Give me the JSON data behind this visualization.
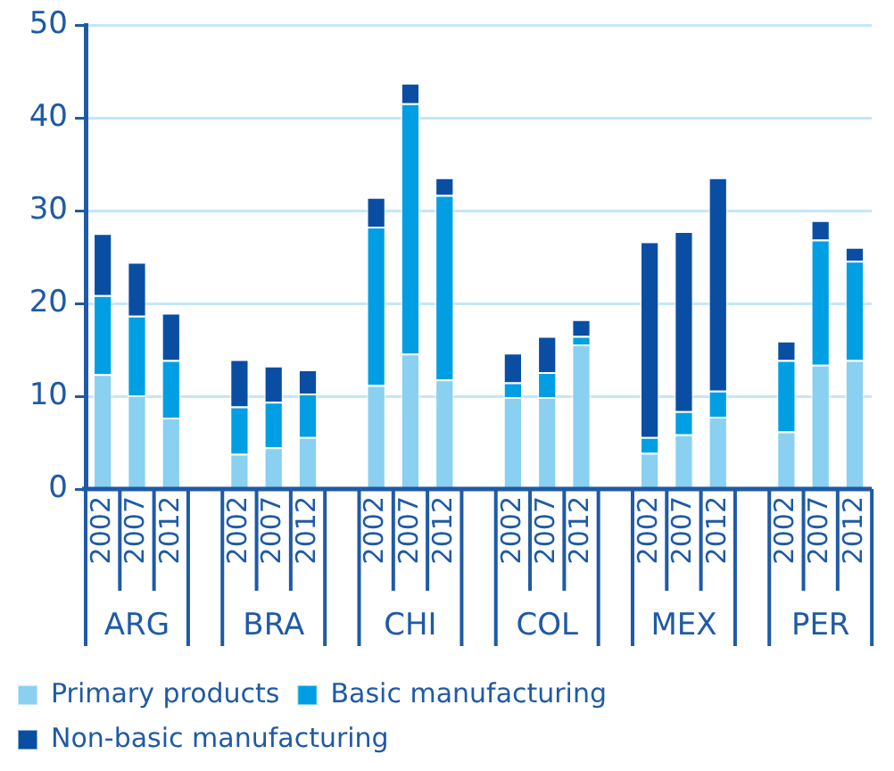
{
  "chart_data": {
    "type": "bar",
    "stacked": true,
    "categories": [
      "2002",
      "2007",
      "2012",
      null,
      "2002",
      "2007",
      "2012",
      null,
      "2002",
      "2007",
      "2012",
      null,
      "2002",
      "2007",
      "2012",
      null,
      "2002",
      "2007",
      "2012",
      null,
      "2002",
      "2007",
      "2012"
    ],
    "series": [
      {
        "name": "Primary products",
        "color": "#8ad0f0",
        "values": [
          12.4,
          10.1,
          7.7,
          null,
          3.8,
          4.5,
          5.6,
          null,
          11.2,
          14.6,
          11.8,
          null,
          9.9,
          9.9,
          15.6,
          null,
          3.9,
          5.9,
          7.8,
          null,
          6.2,
          13.4,
          13.9
        ]
      },
      {
        "name": "Basic manufacturing",
        "color": "#009fe3",
        "values": [
          8.5,
          8.6,
          6.2,
          null,
          5.1,
          4.9,
          4.7,
          null,
          17.1,
          27.0,
          19.9,
          null,
          1.6,
          2.7,
          0.9,
          null,
          1.7,
          2.5,
          2.8,
          null,
          7.7,
          13.5,
          10.7
        ]
      },
      {
        "name": "Non-basic manufacturing",
        "color": "#0a4ea3",
        "values": [
          6.7,
          5.8,
          5.1,
          null,
          5.1,
          3.9,
          2.6,
          null,
          3.2,
          2.2,
          1.9,
          null,
          3.2,
          3.9,
          1.8,
          null,
          21.1,
          19.4,
          23.0,
          null,
          2.1,
          2.1,
          1.5
        ]
      }
    ],
    "annotations": [
      "ARG",
      "BRA",
      "CHI",
      "COL",
      "MEX",
      "PER"
    ],
    "ylim": [
      0,
      50
    ],
    "yticks": [
      0,
      10,
      20,
      30,
      40,
      50
    ],
    "grid": "y",
    "legend": "bottom"
  }
}
